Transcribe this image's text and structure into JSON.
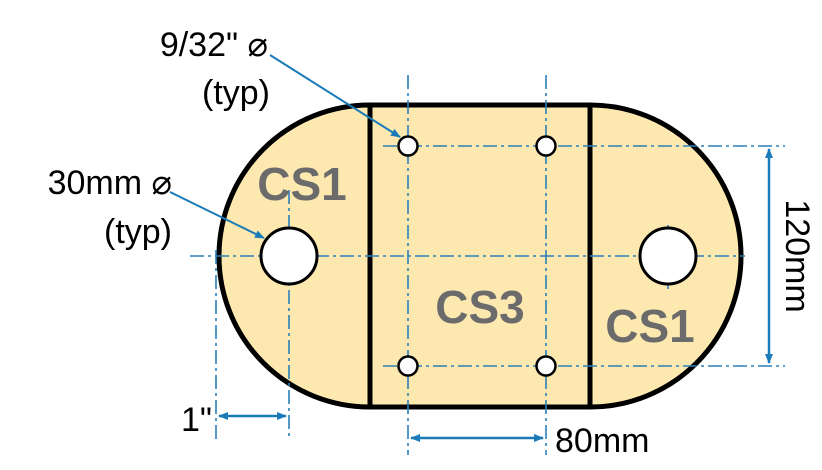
{
  "diagram": {
    "regions": [
      {
        "id": "left",
        "label": "CS1"
      },
      {
        "id": "center",
        "label": "CS3"
      },
      {
        "id": "right",
        "label": "CS1"
      }
    ],
    "callouts": {
      "small_hole": {
        "line1": "9/32\" ⌀",
        "line2": "(typ)"
      },
      "large_hole": {
        "line1": "30mm ⌀",
        "line2": "(typ)"
      }
    },
    "dimensions": {
      "edge_offset": "1\"",
      "hole_spacing_horizontal": "80mm",
      "hole_spacing_vertical": "120mm"
    },
    "colors": {
      "fill": "#fde9b0",
      "outline": "#000000",
      "centerline": "#2a7fb8",
      "dimension": "#1a7bb8",
      "region_text": "#6b6b6b"
    }
  }
}
